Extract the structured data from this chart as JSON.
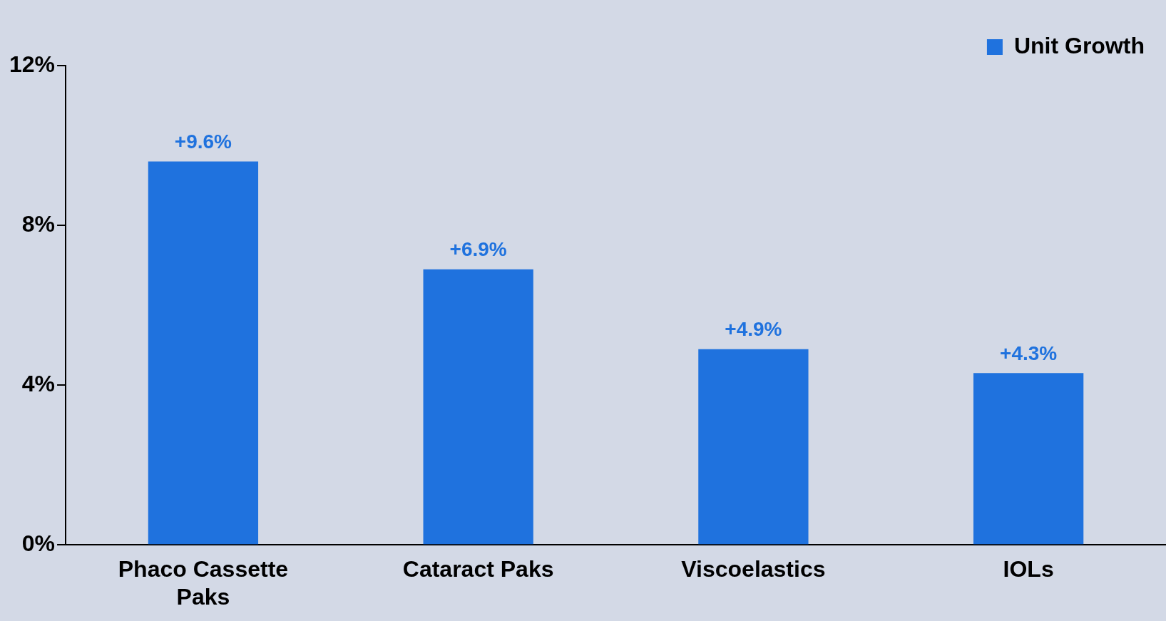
{
  "chart_data": {
    "type": "bar",
    "categories": [
      "Phaco Cassette Paks",
      "Cataract Paks",
      "Viscoelastics",
      "IOLs"
    ],
    "series": [
      {
        "name": "Unit Growth",
        "color": "#1f72de",
        "values": [
          9.6,
          6.9,
          4.9,
          4.3
        ]
      }
    ],
    "value_labels": [
      "+9.6%",
      "+6.9%",
      "+4.9%",
      "+4.3%"
    ],
    "ylim": [
      0,
      12
    ],
    "yticks": [
      {
        "value": 0,
        "label": "0%"
      },
      {
        "value": 4,
        "label": "4%"
      },
      {
        "value": 8,
        "label": "8%"
      },
      {
        "value": 12,
        "label": "12%"
      }
    ],
    "grid": false,
    "legend": "top right"
  }
}
